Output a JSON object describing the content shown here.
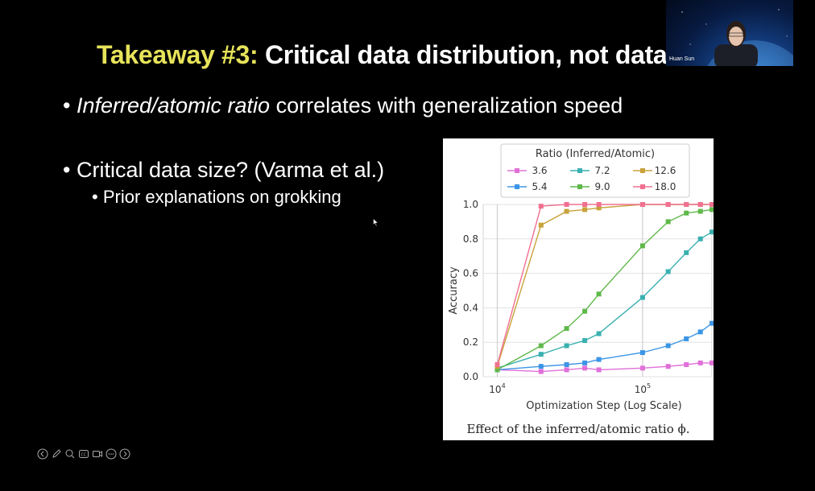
{
  "slide": {
    "title_highlight": "Takeaway #3:",
    "title_rest": " Critical data distribution, not data",
    "bullet1_italic": "Inferred/atomic ratio",
    "bullet1_rest": " correlates with generalization speed",
    "bullet2": "Critical data size? (Varma et al.)",
    "sub_bullet": "Prior explanations on grokking",
    "caption": "Effect of the inferred/atomic ratio ϕ."
  },
  "video": {
    "speaker_name": "Huan Sun"
  },
  "toolbar": {
    "icons": [
      "back-icon",
      "pen-icon",
      "zoom-icon",
      "cc-icon",
      "video-icon",
      "more-icon",
      "forward-icon"
    ]
  },
  "chart_data": {
    "type": "line",
    "title": "",
    "xlabel": "Optimization Step (Log Scale)",
    "ylabel": "Accuracy",
    "xscale": "log",
    "xlim": [
      8000,
      300000
    ],
    "ylim": [
      0.0,
      1.0
    ],
    "x_tick_labels": [
      {
        "value": 10000,
        "base": "10",
        "exp": "4"
      },
      {
        "value": 100000,
        "base": "10",
        "exp": "5"
      }
    ],
    "y_tick_labels": [
      "0.0",
      "0.2",
      "0.4",
      "0.6",
      "0.8",
      "1.0"
    ],
    "y_tick_values": [
      0.0,
      0.2,
      0.4,
      0.6,
      0.8,
      1.0
    ],
    "legend_title": "Ratio (Inferred/Atomic)",
    "legend_position": "top",
    "grid": true,
    "series": [
      {
        "name": "3.6",
        "color": "#e070d8",
        "x": [
          10000,
          20000,
          30000,
          40000,
          50000,
          100000,
          150000,
          200000,
          250000,
          300000
        ],
        "y": [
          0.04,
          0.03,
          0.04,
          0.05,
          0.04,
          0.05,
          0.06,
          0.07,
          0.08,
          0.08
        ]
      },
      {
        "name": "5.4",
        "color": "#3b95e6",
        "x": [
          10000,
          20000,
          30000,
          40000,
          50000,
          100000,
          150000,
          200000,
          250000,
          300000
        ],
        "y": [
          0.04,
          0.06,
          0.07,
          0.08,
          0.1,
          0.14,
          0.18,
          0.22,
          0.26,
          0.31
        ]
      },
      {
        "name": "7.2",
        "color": "#3ab0b0",
        "x": [
          10000,
          20000,
          30000,
          40000,
          50000,
          100000,
          150000,
          200000,
          250000,
          300000
        ],
        "y": [
          0.05,
          0.13,
          0.18,
          0.21,
          0.25,
          0.46,
          0.61,
          0.72,
          0.8,
          0.84
        ]
      },
      {
        "name": "9.0",
        "color": "#5fb84a",
        "x": [
          10000,
          20000,
          30000,
          40000,
          50000,
          100000,
          150000,
          200000,
          250000,
          300000
        ],
        "y": [
          0.04,
          0.18,
          0.28,
          0.38,
          0.48,
          0.76,
          0.9,
          0.95,
          0.96,
          0.97
        ]
      },
      {
        "name": "12.6",
        "color": "#c8a23a",
        "x": [
          10000,
          20000,
          30000,
          40000,
          50000,
          100000,
          150000,
          200000,
          250000,
          300000
        ],
        "y": [
          0.06,
          0.88,
          0.96,
          0.97,
          0.98,
          1.0,
          1.0,
          1.0,
          1.0,
          1.0
        ]
      },
      {
        "name": "18.0",
        "color": "#f07090",
        "x": [
          10000,
          20000,
          30000,
          40000,
          50000,
          100000,
          150000,
          200000,
          250000,
          300000
        ],
        "y": [
          0.07,
          0.99,
          1.0,
          1.0,
          1.0,
          1.0,
          1.0,
          1.0,
          1.0,
          1.0
        ]
      }
    ]
  }
}
